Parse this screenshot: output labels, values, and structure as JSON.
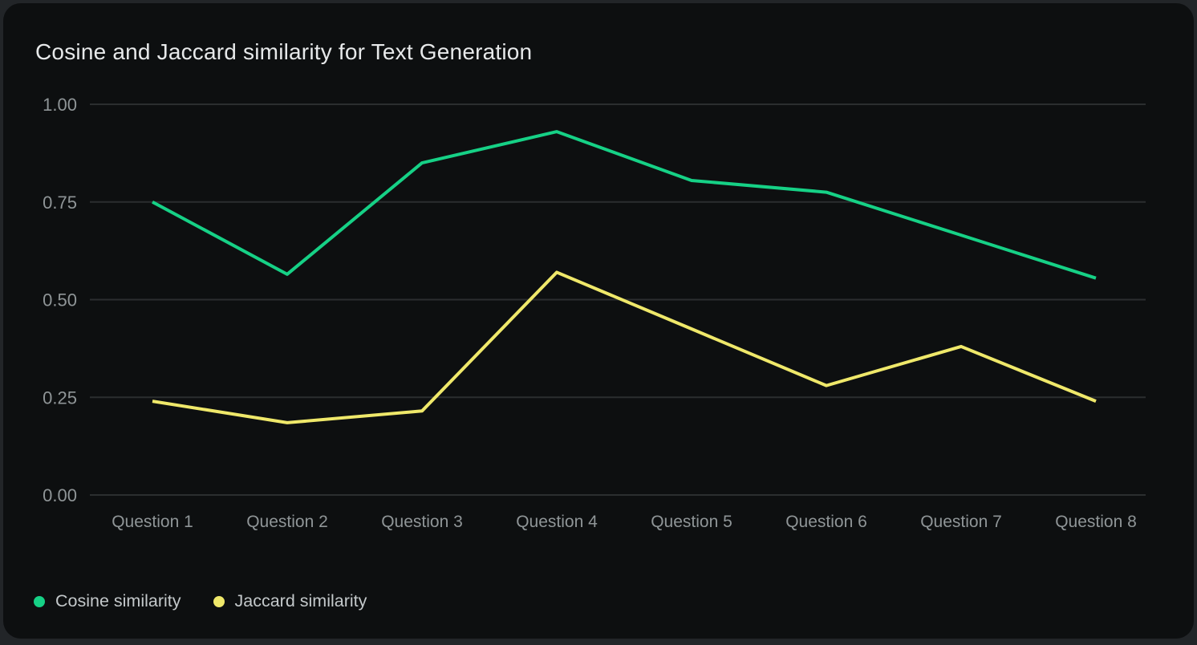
{
  "page": {
    "background_color": "#222528",
    "card_background_color": "#0d0f10"
  },
  "chart": {
    "title": "Cosine and Jaccard similarity for Text Generation"
  },
  "chart_data": {
    "type": "line",
    "title": "Cosine and Jaccard similarity for Text Generation",
    "categories": [
      "Question 1",
      "Question 2",
      "Question 3",
      "Question 4",
      "Question 5",
      "Question 6",
      "Question 7",
      "Question 8"
    ],
    "series": [
      {
        "name": "Cosine similarity",
        "color": "#16d186",
        "values": [
          0.75,
          0.565,
          0.85,
          0.93,
          0.805,
          0.775,
          0.665,
          0.555
        ]
      },
      {
        "name": "Jaccard similarity",
        "color": "#efe86a",
        "values": [
          0.24,
          0.185,
          0.215,
          0.57,
          0.425,
          0.28,
          0.38,
          0.24
        ]
      }
    ],
    "xlabel": "",
    "ylabel": "",
    "ylim": [
      0,
      1
    ],
    "yticks": [
      0,
      0.25,
      0.5,
      0.75,
      1
    ],
    "ytick_labels": [
      "0.00",
      "0.25",
      "0.50",
      "0.75",
      "1.00"
    ],
    "grid": "horizontal-only",
    "grid_color": "#2b2e2f",
    "tick_label_color": "#8f9597",
    "legend_position": "bottom-left",
    "legend_text_color": "#c3c8ca"
  }
}
